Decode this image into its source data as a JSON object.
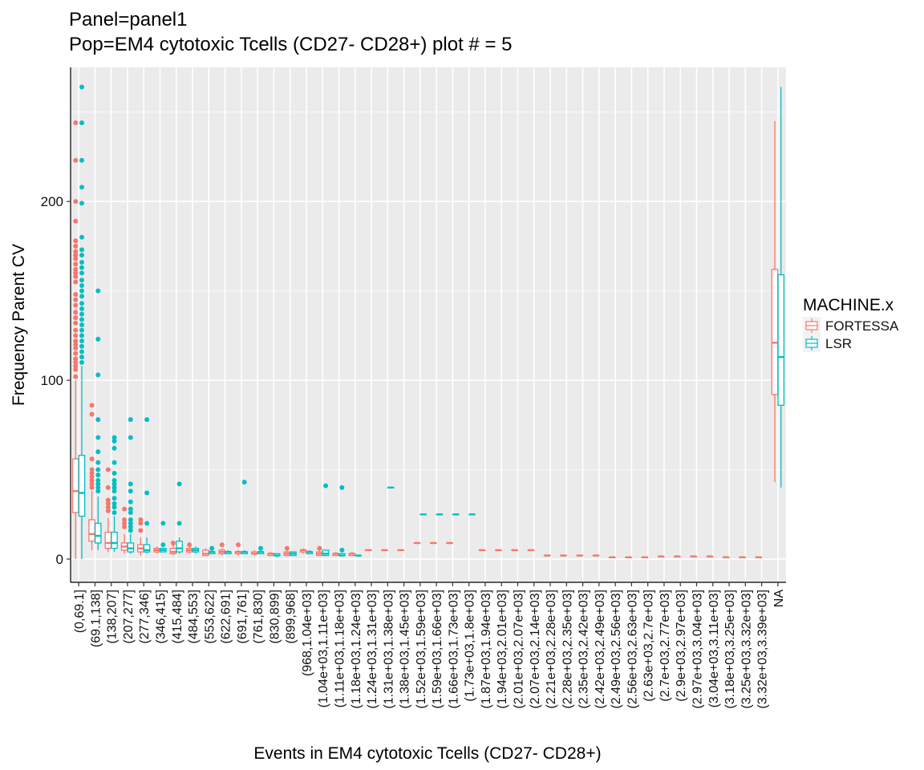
{
  "chart_data": {
    "type": "boxplot",
    "title": "Panel=panel1",
    "subtitle": "Pop=EM4 cytotoxic Tcells (CD27-  CD28+) plot # = 5",
    "xlabel": "Events in EM4 cytotoxic Tcells (CD27-  CD28+)",
    "ylabel": "Frequency Parent CV",
    "y_ticks": [
      0,
      100,
      200
    ],
    "ylim": [
      -13,
      275
    ],
    "grid": true,
    "legend": {
      "title": "MACHINE.x",
      "position": "right"
    },
    "categories": [
      "(0,69.1]",
      "(69.1,138]",
      "(138,207]",
      "(207,277]",
      "(277,346]",
      "(346,415]",
      "(415,484]",
      "(484,553]",
      "(553,622]",
      "(622,691]",
      "(691,761]",
      "(761,830]",
      "(830,899]",
      "(899,968]",
      "(968,1.04e+03]",
      "(1.04e+03,1.11e+03]",
      "(1.11e+03,1.18e+03]",
      "(1.18e+03,1.24e+03]",
      "(1.24e+03,1.31e+03]",
      "(1.31e+03,1.38e+03]",
      "(1.38e+03,1.45e+03]",
      "(1.52e+03,1.59e+03]",
      "(1.59e+03,1.66e+03]",
      "(1.66e+03,1.73e+03]",
      "(1.73e+03,1.8e+03]",
      "(1.87e+03,1.94e+03]",
      "(1.94e+03,2.01e+03]",
      "(2.01e+03,2.07e+03]",
      "(2.07e+03,2.14e+03]",
      "(2.21e+03,2.28e+03]",
      "(2.28e+03,2.35e+03]",
      "(2.35e+03,2.42e+03]",
      "(2.42e+03,2.49e+03]",
      "(2.49e+03,2.56e+03]",
      "(2.56e+03,2.63e+03]",
      "(2.63e+03,2.7e+03]",
      "(2.7e+03,2.77e+03]",
      "(2.9e+03,2.97e+03]",
      "(2.97e+03,3.04e+03]",
      "(3.04e+03,3.11e+03]",
      "(3.18e+03,3.25e+03]",
      "(3.25e+03,3.32e+03]",
      "(3.32e+03,3.39e+03]",
      "NA"
    ],
    "series": [
      {
        "name": "FORTESSA",
        "color": "#F8766D",
        "boxes": [
          {
            "cat": 0,
            "min": 0,
            "q1": 26,
            "median": 38,
            "q3": 56,
            "max": 100,
            "outliers": [
              102,
              106,
              108,
              110,
              112,
              115,
              118,
              120,
              122,
              125,
              128,
              132,
              135,
              138,
              142,
              145,
              148,
              155,
              158,
              160,
              162,
              165,
              168,
              170,
              172,
              175,
              178,
              189,
              200,
              223,
              244
            ]
          },
          {
            "cat": 1,
            "min": 5,
            "q1": 10,
            "median": 14,
            "q3": 22,
            "max": 38,
            "outliers": [
              40,
              42,
              44,
              46,
              48,
              50,
              56,
              81,
              86
            ]
          },
          {
            "cat": 2,
            "min": 4,
            "q1": 6,
            "median": 9,
            "q3": 15,
            "max": 23,
            "outliers": [
              27,
              29,
              31,
              33,
              40,
              50
            ]
          },
          {
            "cat": 3,
            "min": 3,
            "q1": 5,
            "median": 7,
            "q3": 9,
            "max": 14,
            "outliers": [
              18,
              20,
              22,
              28
            ]
          },
          {
            "cat": 4,
            "min": 2,
            "q1": 4,
            "median": 6,
            "q3": 8,
            "max": 12,
            "outliers": [
              16,
              20,
              22
            ]
          },
          {
            "cat": 5,
            "min": 3,
            "q1": 4,
            "median": 5,
            "q3": 6,
            "max": 7,
            "outliers": []
          },
          {
            "cat": 6,
            "min": 2,
            "q1": 3,
            "median": 4,
            "q3": 6,
            "max": 8,
            "outliers": [
              9
            ]
          },
          {
            "cat": 7,
            "min": 3,
            "q1": 4,
            "median": 5,
            "q3": 6,
            "max": 7,
            "outliers": [
              8
            ]
          },
          {
            "cat": 8,
            "min": 2,
            "q1": 2,
            "median": 3,
            "q3": 5,
            "max": 6,
            "outliers": []
          },
          {
            "cat": 9,
            "min": 2,
            "q1": 3,
            "median": 4,
            "q3": 5,
            "max": 6,
            "outliers": [
              8
            ]
          },
          {
            "cat": 10,
            "min": 2,
            "q1": 3,
            "median": 4,
            "q3": 4,
            "max": 5,
            "outliers": [
              8
            ]
          },
          {
            "cat": 11,
            "min": 2,
            "q1": 3,
            "median": 3,
            "q3": 4,
            "max": 5,
            "outliers": []
          },
          {
            "cat": 12,
            "min": 2,
            "q1": 2,
            "median": 3,
            "q3": 3,
            "max": 4,
            "outliers": []
          },
          {
            "cat": 13,
            "min": 2,
            "q1": 2,
            "median": 3,
            "q3": 4,
            "max": 5,
            "outliers": [
              6
            ]
          },
          {
            "cat": 14,
            "min": 3,
            "q1": 4,
            "median": 5,
            "q3": 5,
            "max": 6,
            "outliers": []
          },
          {
            "cat": 15,
            "min": 2,
            "q1": 2,
            "median": 3,
            "q3": 4,
            "max": 5,
            "outliers": [
              6
            ]
          },
          {
            "cat": 16,
            "min": 2,
            "q1": 2,
            "median": 3,
            "q3": 3,
            "max": 4,
            "outliers": []
          },
          {
            "cat": 17,
            "min": 2,
            "q1": 2,
            "median": 3,
            "q3": 3,
            "max": 4,
            "outliers": []
          },
          {
            "cat": 18,
            "min": 5,
            "q1": 5,
            "median": 5,
            "q3": 5,
            "max": 5,
            "outliers": []
          },
          {
            "cat": 19,
            "min": 5,
            "q1": 5,
            "median": 5,
            "q3": 5,
            "max": 5,
            "outliers": []
          },
          {
            "cat": 20,
            "min": 5,
            "q1": 5,
            "median": 5,
            "q3": 5,
            "max": 5,
            "outliers": []
          },
          {
            "cat": 21,
            "min": 9,
            "q1": 9,
            "median": 9,
            "q3": 9,
            "max": 9,
            "outliers": []
          },
          {
            "cat": 22,
            "min": 9,
            "q1": 9,
            "median": 9,
            "q3": 9,
            "max": 9,
            "outliers": []
          },
          {
            "cat": 23,
            "min": 9,
            "q1": 9,
            "median": 9,
            "q3": 9,
            "max": 9,
            "outliers": []
          },
          {
            "cat": 25,
            "min": 5,
            "q1": 5,
            "median": 5,
            "q3": 5,
            "max": 5,
            "outliers": []
          },
          {
            "cat": 26,
            "min": 5,
            "q1": 5,
            "median": 5,
            "q3": 5,
            "max": 5,
            "outliers": []
          },
          {
            "cat": 27,
            "min": 5,
            "q1": 5,
            "median": 5,
            "q3": 5,
            "max": 5,
            "outliers": []
          },
          {
            "cat": 28,
            "min": 5,
            "q1": 5,
            "median": 5,
            "q3": 5,
            "max": 5,
            "outliers": []
          },
          {
            "cat": 29,
            "min": 2,
            "q1": 2,
            "median": 2,
            "q3": 2,
            "max": 2,
            "outliers": []
          },
          {
            "cat": 30,
            "min": 2,
            "q1": 2,
            "median": 2,
            "q3": 2,
            "max": 2,
            "outliers": []
          },
          {
            "cat": 31,
            "min": 2,
            "q1": 2,
            "median": 2,
            "q3": 2,
            "max": 2,
            "outliers": []
          },
          {
            "cat": 32,
            "min": 2,
            "q1": 2,
            "median": 2,
            "q3": 2,
            "max": 2,
            "outliers": []
          },
          {
            "cat": 33,
            "min": 1,
            "q1": 1,
            "median": 1,
            "q3": 1,
            "max": 1,
            "outliers": []
          },
          {
            "cat": 34,
            "min": 1,
            "q1": 1,
            "median": 1,
            "q3": 1,
            "max": 1,
            "outliers": []
          },
          {
            "cat": 35,
            "min": 1,
            "q1": 1,
            "median": 1,
            "q3": 1,
            "max": 1,
            "outliers": []
          },
          {
            "cat": 36,
            "min": 1.5,
            "q1": 1.5,
            "median": 1.5,
            "q3": 1.5,
            "max": 1.5,
            "outliers": []
          },
          {
            "cat": 37,
            "min": 1.5,
            "q1": 1.5,
            "median": 1.5,
            "q3": 1.5,
            "max": 1.5,
            "outliers": []
          },
          {
            "cat": 38,
            "min": 1.5,
            "q1": 1.5,
            "median": 1.5,
            "q3": 1.5,
            "max": 1.5,
            "outliers": []
          },
          {
            "cat": 39,
            "min": 1.5,
            "q1": 1.5,
            "median": 1.5,
            "q3": 1.5,
            "max": 1.5,
            "outliers": []
          },
          {
            "cat": 40,
            "min": 1,
            "q1": 1,
            "median": 1,
            "q3": 1,
            "max": 1,
            "outliers": []
          },
          {
            "cat": 41,
            "min": 1,
            "q1": 1,
            "median": 1,
            "q3": 1,
            "max": 1,
            "outliers": []
          },
          {
            "cat": 42,
            "min": 1,
            "q1": 1,
            "median": 1,
            "q3": 1,
            "max": 1,
            "outliers": []
          },
          {
            "cat": 43,
            "min": 43,
            "q1": 92,
            "median": 121,
            "q3": 162,
            "max": 245,
            "outliers": []
          }
        ]
      },
      {
        "name": "LSR",
        "color": "#00BFC4",
        "boxes": [
          {
            "cat": 0,
            "min": 0,
            "q1": 24,
            "median": 37,
            "q3": 58,
            "max": 108,
            "outliers": [
              110,
              113,
              116,
              119,
              122,
              125,
              128,
              131,
              134,
              137,
              140,
              143,
              147,
              150,
              153,
              156,
              160,
              163,
              166,
              170,
              173,
              180,
              199,
              208,
              223,
              244,
              264
            ]
          },
          {
            "cat": 1,
            "min": 5,
            "q1": 9,
            "median": 13,
            "q3": 20,
            "max": 35,
            "outliers": [
              38,
              40,
              42,
              44,
              47,
              50,
              54,
              60,
              68,
              78,
              103,
              123,
              150
            ]
          },
          {
            "cat": 2,
            "min": 4,
            "q1": 6,
            "median": 9,
            "q3": 15,
            "max": 24,
            "outliers": [
              26,
              29,
              31,
              34,
              38,
              40,
              42,
              44,
              48,
              54,
              62,
              66,
              68
            ]
          },
          {
            "cat": 3,
            "min": 3,
            "q1": 4,
            "median": 6,
            "q3": 9,
            "max": 14,
            "outliers": [
              16,
              18,
              20,
              22,
              26,
              28,
              32,
              38,
              42,
              68,
              78
            ]
          },
          {
            "cat": 4,
            "min": 3,
            "q1": 4,
            "median": 5,
            "q3": 8,
            "max": 12,
            "outliers": [
              20,
              37,
              78
            ]
          },
          {
            "cat": 5,
            "min": 4,
            "q1": 4,
            "median": 5,
            "q3": 6,
            "max": 6,
            "outliers": [
              8,
              20
            ]
          },
          {
            "cat": 6,
            "min": 3,
            "q1": 4,
            "median": 6,
            "q3": 10,
            "max": 12,
            "outliers": [
              20,
              42
            ]
          },
          {
            "cat": 7,
            "min": 3,
            "q1": 4,
            "median": 5,
            "q3": 6,
            "max": 7,
            "outliers": []
          },
          {
            "cat": 8,
            "min": 3,
            "q1": 3,
            "median": 4,
            "q3": 4,
            "max": 5,
            "outliers": [
              6
            ]
          },
          {
            "cat": 9,
            "min": 3,
            "q1": 3,
            "median": 4,
            "q3": 4,
            "max": 5,
            "outliers": []
          },
          {
            "cat": 10,
            "min": 3,
            "q1": 3,
            "median": 4,
            "q3": 4,
            "max": 5,
            "outliers": [
              43
            ]
          },
          {
            "cat": 11,
            "min": 3,
            "q1": 3,
            "median": 4,
            "q3": 4,
            "max": 5,
            "outliers": [
              6
            ]
          },
          {
            "cat": 12,
            "min": 1,
            "q1": 2,
            "median": 2,
            "q3": 3,
            "max": 3,
            "outliers": []
          },
          {
            "cat": 13,
            "min": 2,
            "q1": 2,
            "median": 3,
            "q3": 4,
            "max": 4,
            "outliers": []
          },
          {
            "cat": 14,
            "min": 3,
            "q1": 3,
            "median": 4,
            "q3": 4,
            "max": 5,
            "outliers": []
          },
          {
            "cat": 15,
            "min": 2,
            "q1": 2,
            "median": 3,
            "q3": 5,
            "max": 5,
            "outliers": [
              41
            ]
          },
          {
            "cat": 16,
            "min": 2,
            "q1": 2,
            "median": 2,
            "q3": 3,
            "max": 3,
            "outliers": [
              5,
              40
            ]
          },
          {
            "cat": 17,
            "min": 2,
            "q1": 2,
            "median": 2,
            "q3": 2,
            "max": 2,
            "outliers": []
          },
          {
            "cat": 19,
            "min": 40,
            "q1": 40,
            "median": 40,
            "q3": 40,
            "max": 40,
            "outliers": []
          },
          {
            "cat": 21,
            "min": 25,
            "q1": 25,
            "median": 25,
            "q3": 25,
            "max": 25,
            "outliers": []
          },
          {
            "cat": 22,
            "min": 25,
            "q1": 25,
            "median": 25,
            "q3": 25,
            "max": 25,
            "outliers": []
          },
          {
            "cat": 23,
            "min": 25,
            "q1": 25,
            "median": 25,
            "q3": 25,
            "max": 25,
            "outliers": []
          },
          {
            "cat": 24,
            "min": 25,
            "q1": 25,
            "median": 25,
            "q3": 25,
            "max": 25,
            "outliers": []
          },
          {
            "cat": 43,
            "min": 40,
            "q1": 86,
            "median": 113,
            "q3": 159,
            "max": 264,
            "outliers": []
          }
        ]
      }
    ]
  }
}
